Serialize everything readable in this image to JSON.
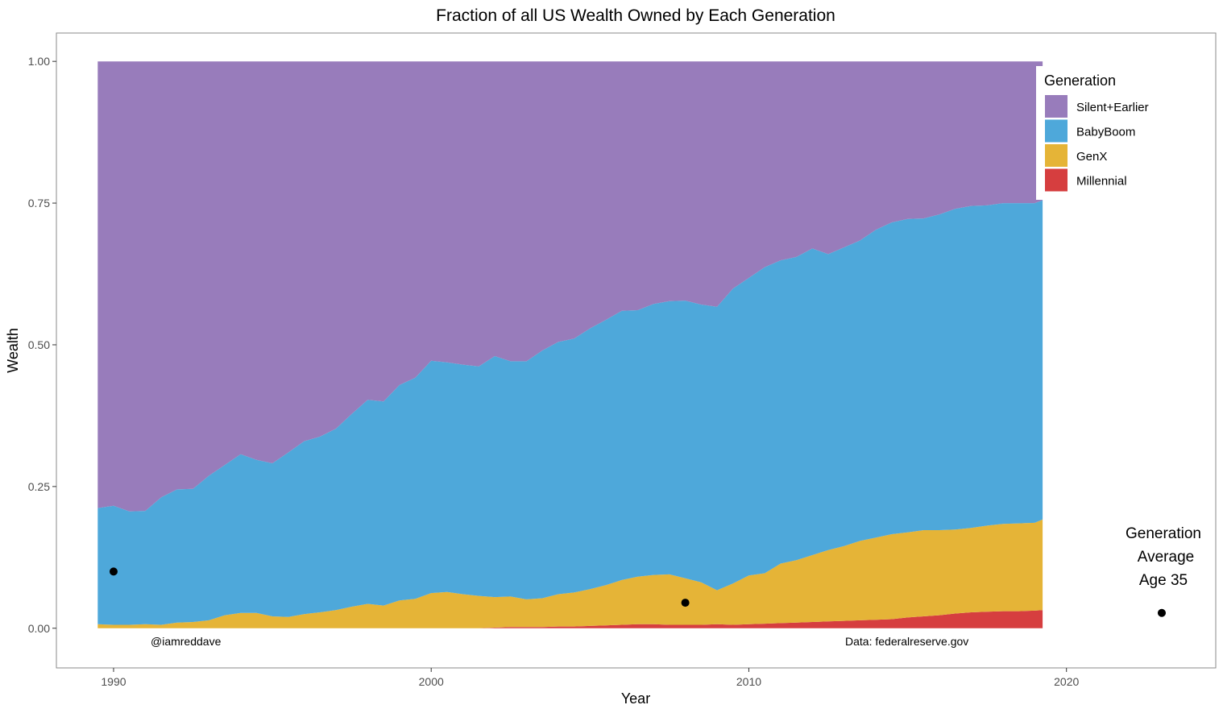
{
  "chart_data": {
    "type": "area",
    "stacked": true,
    "title": "Fraction of all US Wealth Owned by Each Generation",
    "xlabel": "Year",
    "ylabel": "Wealth",
    "xlim": [
      1988.2,
      2024.7
    ],
    "ylim": [
      -0.07,
      1.05
    ],
    "x_ticks": [
      1990,
      2000,
      2010,
      2020
    ],
    "y_ticks": [
      0,
      0.25,
      0.5,
      0.75,
      1.0
    ],
    "y_tick_labels": [
      "0.00",
      "0.25",
      "0.50",
      "0.75",
      "1.00"
    ],
    "grid": false,
    "legend": {
      "title": "Generation",
      "position": "top-right",
      "entries": [
        "Silent+Earlier",
        "BabyBoom",
        "GenX",
        "Millennial"
      ]
    },
    "colors": {
      "Silent+Earlier": "#987CBB",
      "BabyBoom": "#4EA8DA",
      "GenX": "#E5B437",
      "Millennial": "#D63E3F"
    },
    "x": [
      1989.5,
      1990,
      1990.5,
      1991,
      1991.5,
      1992,
      1992.5,
      1993,
      1993.5,
      1994,
      1994.5,
      1995,
      1995.5,
      1996,
      1996.5,
      1997,
      1997.5,
      1998,
      1998.5,
      1999,
      1999.5,
      2000,
      2000.5,
      2001,
      2001.5,
      2002,
      2002.5,
      2003,
      2003.5,
      2004,
      2004.5,
      2005,
      2005.5,
      2006,
      2006.5,
      2007,
      2007.5,
      2008,
      2008.5,
      2009,
      2009.5,
      2010,
      2010.5,
      2011,
      2011.5,
      2012,
      2012.5,
      2013,
      2013.5,
      2014,
      2014.5,
      2015,
      2015.5,
      2016,
      2016.5,
      2017,
      2017.5,
      2018,
      2018.5,
      2019,
      2019.25
    ],
    "series": [
      {
        "name": "Millennial",
        "values": [
          0,
          0,
          0,
          0,
          0,
          0,
          0,
          0,
          0,
          0,
          0,
          0,
          0,
          0,
          0,
          0,
          0,
          0,
          0,
          0,
          0,
          0,
          0,
          0,
          0,
          0.001,
          0.002,
          0.002,
          0.002,
          0.003,
          0.003,
          0.004,
          0.005,
          0.006,
          0.007,
          0.007,
          0.006,
          0.006,
          0.006,
          0.007,
          0.006,
          0.007,
          0.008,
          0.009,
          0.01,
          0.011,
          0.012,
          0.013,
          0.014,
          0.015,
          0.016,
          0.019,
          0.021,
          0.023,
          0.026,
          0.028,
          0.029,
          0.03,
          0.03,
          0.031,
          0.032
        ]
      },
      {
        "name": "GenX",
        "values": [
          0.007,
          0.006,
          0.006,
          0.007,
          0.006,
          0.01,
          0.011,
          0.014,
          0.023,
          0.027,
          0.027,
          0.021,
          0.02,
          0.025,
          0.028,
          0.032,
          0.038,
          0.043,
          0.04,
          0.049,
          0.052,
          0.062,
          0.064,
          0.06,
          0.057,
          0.054,
          0.054,
          0.049,
          0.051,
          0.057,
          0.06,
          0.065,
          0.071,
          0.079,
          0.084,
          0.087,
          0.089,
          0.082,
          0.075,
          0.06,
          0.073,
          0.086,
          0.089,
          0.105,
          0.11,
          0.118,
          0.126,
          0.132,
          0.14,
          0.145,
          0.15,
          0.15,
          0.152,
          0.15,
          0.148,
          0.149,
          0.152,
          0.154,
          0.155,
          0.155,
          0.16
        ]
      },
      {
        "name": "BabyBoom",
        "values": [
          0.205,
          0.21,
          0.2,
          0.2,
          0.225,
          0.235,
          0.235,
          0.255,
          0.265,
          0.28,
          0.27,
          0.27,
          0.29,
          0.305,
          0.31,
          0.32,
          0.34,
          0.36,
          0.36,
          0.38,
          0.39,
          0.41,
          0.405,
          0.405,
          0.405,
          0.425,
          0.415,
          0.42,
          0.437,
          0.445,
          0.448,
          0.46,
          0.468,
          0.475,
          0.47,
          0.478,
          0.482,
          0.49,
          0.49,
          0.5,
          0.52,
          0.525,
          0.54,
          0.535,
          0.535,
          0.541,
          0.522,
          0.527,
          0.53,
          0.543,
          0.55,
          0.553,
          0.55,
          0.557,
          0.566,
          0.568,
          0.565,
          0.566,
          0.565,
          0.564,
          0.563
        ]
      },
      {
        "name": "Silent+Earlier",
        "values": [
          0.788,
          0.784,
          0.794,
          0.793,
          0.769,
          0.755,
          0.754,
          0.731,
          0.712,
          0.693,
          0.703,
          0.709,
          0.69,
          0.67,
          0.662,
          0.648,
          0.622,
          0.597,
          0.6,
          0.571,
          0.558,
          0.528,
          0.531,
          0.535,
          0.538,
          0.52,
          0.529,
          0.529,
          0.51,
          0.495,
          0.489,
          0.471,
          0.456,
          0.44,
          0.439,
          0.428,
          0.423,
          0.422,
          0.429,
          0.433,
          0.401,
          0.382,
          0.363,
          0.351,
          0.345,
          0.33,
          0.34,
          0.328,
          0.316,
          0.297,
          0.284,
          0.278,
          0.277,
          0.27,
          0.26,
          0.255,
          0.254,
          0.25,
          0.25,
          0.25,
          0.245
        ]
      }
    ],
    "points": [
      {
        "x": 1990,
        "y": 0.1
      },
      {
        "x": 2008,
        "y": 0.045
      },
      {
        "x": 2023,
        "y": 0.027
      }
    ],
    "annotations": {
      "handle": "@iamreddave",
      "source": "Data: federalreserve.gov",
      "point_label_lines": [
        "Generation",
        "Average",
        "Age 35"
      ]
    }
  }
}
